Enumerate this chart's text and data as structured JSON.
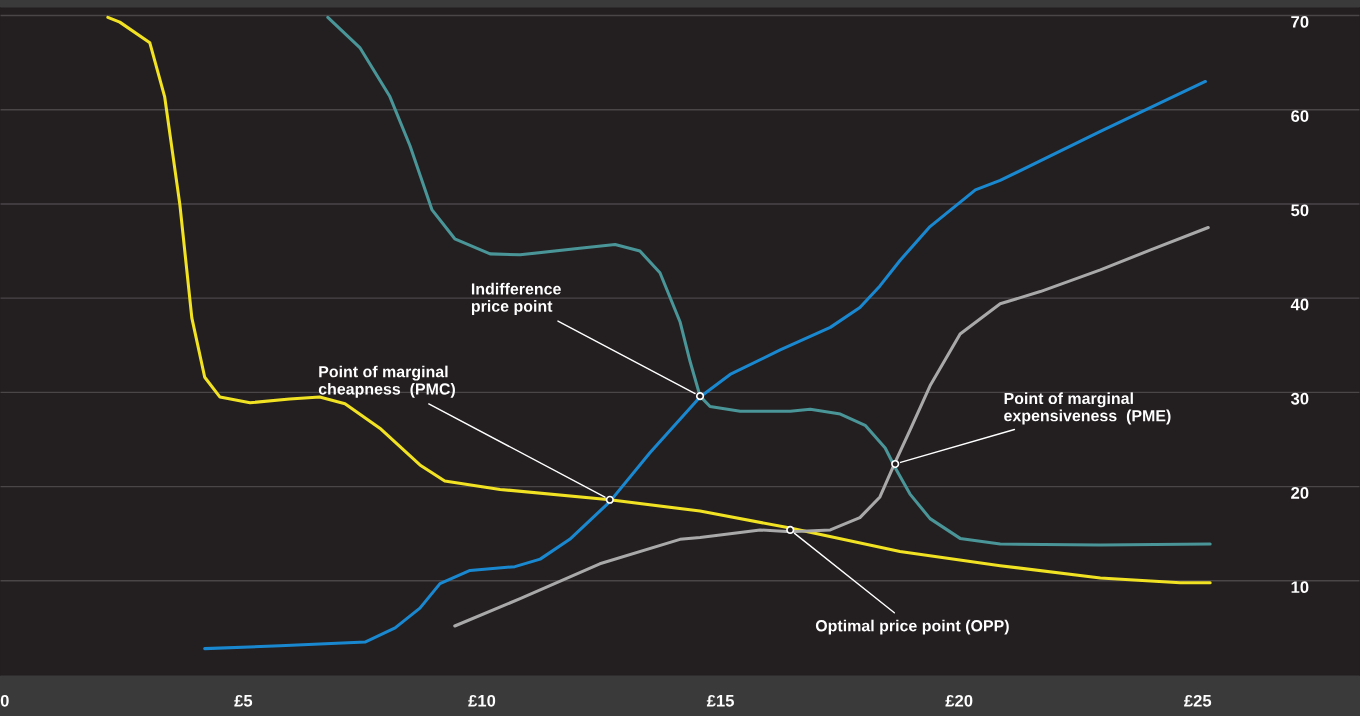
{
  "chart_data": {
    "type": "line",
    "xlim": [
      -0.1,
      28.4
    ],
    "xticks": [
      {
        "value": 0,
        "label": "0"
      },
      {
        "value": 5,
        "label": "£5"
      },
      {
        "value": 10,
        "label": "£10"
      },
      {
        "value": 15,
        "label": "£15"
      },
      {
        "value": 20,
        "label": "£20"
      },
      {
        "value": 25,
        "label": "£25"
      }
    ],
    "ylim": [
      0,
      70.8
    ],
    "yticks": [
      10,
      20,
      30,
      40,
      50,
      60,
      70
    ],
    "grid": "y",
    "marker": "none",
    "line_style": "solid",
    "series": [
      {
        "color": "#f2e224",
        "x": [
          2.16,
          2.41,
          3.04,
          3.35,
          3.67,
          3.92,
          4.19,
          4.51,
          5.14,
          5.97,
          6.6,
          7.13,
          7.86,
          8.7,
          9.22,
          10.38,
          12.68,
          14.57,
          16.46,
          18.76,
          20.86,
          22.96,
          24.63,
          25.26
        ],
        "values": [
          69.8,
          69.3,
          67.1,
          61.4,
          49.9,
          37.9,
          31.6,
          29.5,
          28.9,
          29.3,
          29.5,
          28.8,
          26.2,
          22.3,
          20.6,
          19.7,
          18.6,
          17.4,
          15.6,
          13.1,
          11.6,
          10.3,
          9.8,
          9.8
        ]
      },
      {
        "color": "#4a9598",
        "x": [
          6.77,
          7.44,
          8.07,
          8.49,
          8.95,
          9.43,
          10.17,
          10.8,
          12.05,
          12.79,
          13.31,
          13.73,
          14.15,
          14.36,
          14.57,
          14.78,
          15.41,
          16.46,
          16.88,
          17.51,
          18.03,
          18.45,
          18.66,
          18.97,
          19.39,
          20.02,
          20.86,
          22.96,
          25.26
        ],
        "values": [
          69.8,
          66.6,
          61.4,
          56.2,
          49.4,
          46.3,
          44.7,
          44.6,
          45.3,
          45.7,
          45.0,
          42.7,
          37.5,
          33.3,
          29.6,
          28.5,
          28.0,
          28.0,
          28.2,
          27.7,
          26.5,
          24.1,
          22.0,
          19.2,
          16.6,
          14.5,
          13.9,
          13.8,
          13.9
        ]
      },
      {
        "color": "#1a88d0",
        "x": [
          4.19,
          5.77,
          7.55,
          8.18,
          8.7,
          9.12,
          9.75,
          10.69,
          11.22,
          11.84,
          12.68,
          13.52,
          14.57,
          15.2,
          16.25,
          17.3,
          17.92,
          18.34,
          18.76,
          19.39,
          20.34,
          20.86,
          22.96,
          25.16
        ],
        "values": [
          2.8,
          3.1,
          3.5,
          5.0,
          7.1,
          9.7,
          11.1,
          11.5,
          12.3,
          14.4,
          18.4,
          23.6,
          29.5,
          31.9,
          34.5,
          36.9,
          39.0,
          41.3,
          44.0,
          47.6,
          51.5,
          52.5,
          57.7,
          63.0
        ]
      },
      {
        "color": "#a9a9a9",
        "x": [
          9.43,
          10.8,
          12.47,
          14.15,
          14.57,
          15.83,
          16.46,
          17.3,
          17.92,
          18.34,
          18.66,
          18.97,
          19.39,
          20.02,
          20.86,
          21.7,
          22.96,
          24.0,
          25.22
        ],
        "values": [
          5.2,
          8.1,
          11.8,
          14.4,
          14.6,
          15.4,
          15.2,
          15.4,
          16.7,
          18.9,
          22.6,
          26.0,
          30.7,
          36.2,
          39.4,
          40.7,
          43.0,
          45.1,
          47.5
        ]
      }
    ],
    "annotations": [
      {
        "text": "Indifference\nprice point",
        "x": 14.57,
        "y": 29.6
      },
      {
        "text": "Point of marginal\ncheapness  (PMC)",
        "x": 12.68,
        "y": 18.6
      },
      {
        "text": "Point of marginal\nexpensiveness  (PME)",
        "x": 18.66,
        "y": 22.4
      },
      {
        "text": "Optimal price point (OPP)",
        "x": 16.46,
        "y": 15.4
      }
    ]
  }
}
